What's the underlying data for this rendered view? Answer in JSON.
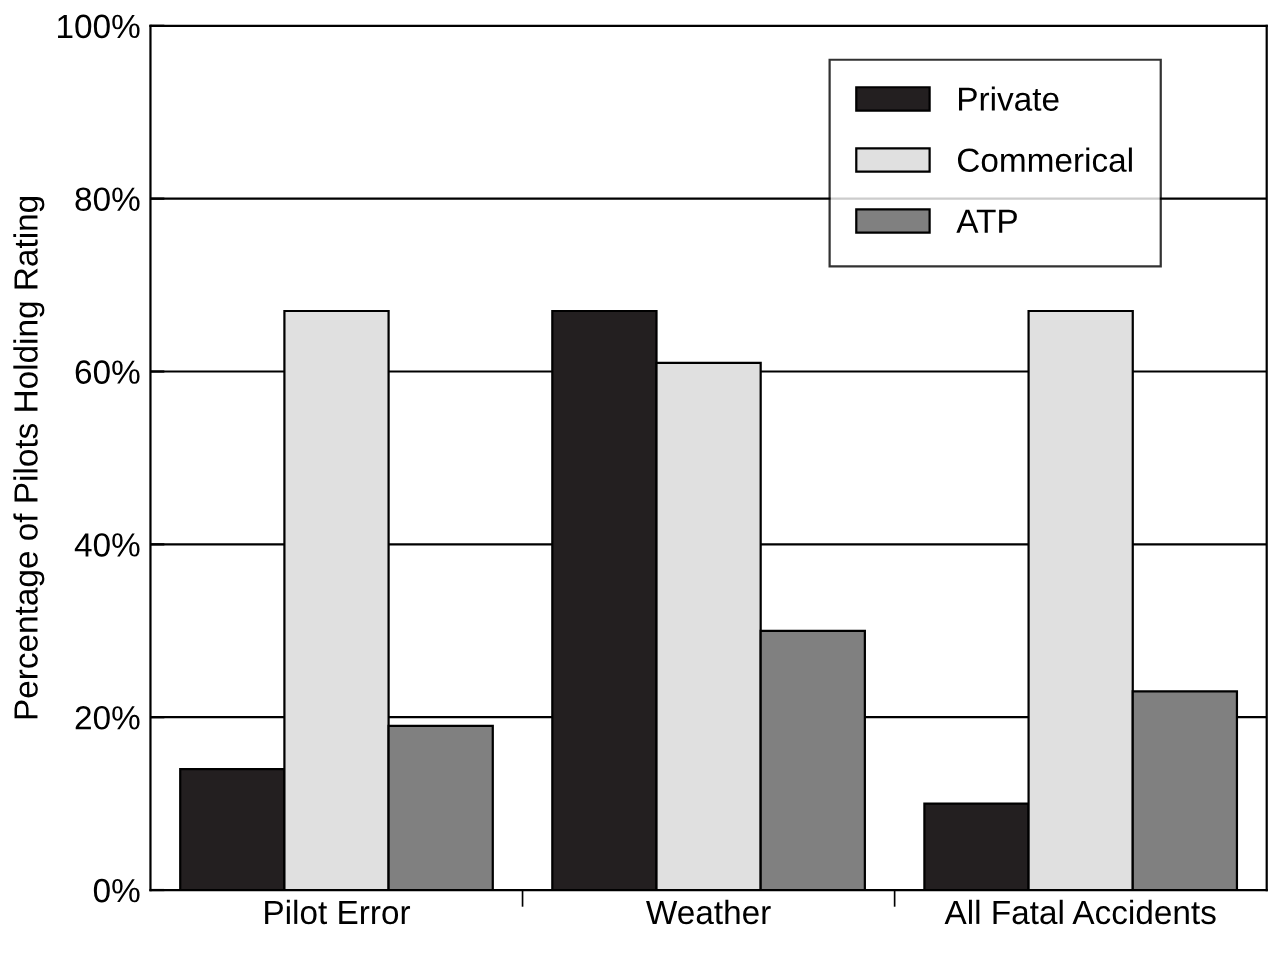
{
  "chart_data": {
    "type": "bar",
    "ylabel": "Percentage of Pilots Holding Rating",
    "categories": [
      "Pilot Error",
      "Weather",
      "All Fatal Accidents"
    ],
    "series": [
      {
        "name": "Private",
        "color": "#231f20",
        "values": [
          14,
          67,
          10
        ]
      },
      {
        "name": "Commerical",
        "color": "#e0e0e0",
        "values": [
          67,
          61,
          67
        ]
      },
      {
        "name": "ATP",
        "color": "#808080",
        "values": [
          19,
          30,
          23
        ]
      }
    ],
    "ylim": [
      0,
      100
    ],
    "yticks": [
      {
        "value": 0,
        "label": "0%"
      },
      {
        "value": 20,
        "label": "20%"
      },
      {
        "value": 40,
        "label": "40%"
      },
      {
        "value": 60,
        "label": "60%"
      },
      {
        "value": 80,
        "label": "80%"
      },
      {
        "value": 100,
        "label": "100%"
      }
    ],
    "grid": "y",
    "legend": "top right"
  }
}
